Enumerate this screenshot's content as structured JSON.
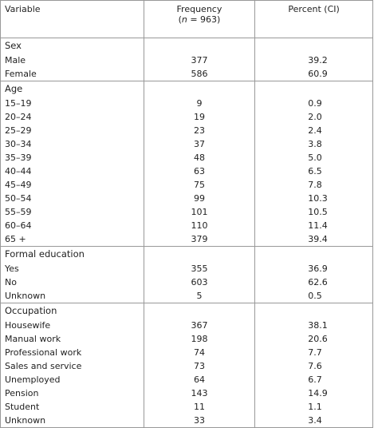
{
  "header": {
    "variable": "Variable",
    "frequency": "Frequency",
    "frequency_note": [
      "(",
      "n",
      " = 963)"
    ],
    "percent": "Percent (CI)"
  },
  "sections": [
    {
      "title": "Sex",
      "rows": [
        [
          "Male",
          "377",
          "39.2"
        ],
        [
          "Female",
          "586",
          "60.9"
        ]
      ]
    },
    {
      "title": "Age",
      "rows": [
        [
          "15–19",
          "9",
          "0.9"
        ],
        [
          "20–24",
          "19",
          "2.0"
        ],
        [
          "25–29",
          "23",
          "2.4"
        ],
        [
          "30–34",
          "37",
          "3.8"
        ],
        [
          "35–39",
          "48",
          "5.0"
        ],
        [
          "40–44",
          "63",
          "6.5"
        ],
        [
          "45–49",
          "75",
          "7.8"
        ],
        [
          "50–54",
          "99",
          "10.3"
        ],
        [
          "55–59",
          "101",
          "10.5"
        ],
        [
          "60–64",
          "110",
          "11.4"
        ],
        [
          "65 +",
          "379",
          "39.4"
        ]
      ]
    },
    {
      "title": "Formal education",
      "rows": [
        [
          "Yes",
          "355",
          "36.9"
        ],
        [
          "No",
          "603",
          "62.6"
        ],
        [
          "Unknown",
          "5",
          "0.5"
        ]
      ]
    },
    {
      "title": "Occupation",
      "rows": [
        [
          "Housewife",
          "367",
          "38.1"
        ],
        [
          "Manual work",
          "198",
          "20.6"
        ],
        [
          "Professional work",
          "74",
          "7.7"
        ],
        [
          "Sales and service",
          "73",
          "7.6"
        ],
        [
          "Unemployed",
          "64",
          "6.7"
        ],
        [
          "Pension",
          "143",
          "14.9"
        ],
        [
          "Student",
          "11",
          "1.1"
        ],
        [
          "Unknown",
          "33",
          "3.4"
        ]
      ]
    }
  ]
}
